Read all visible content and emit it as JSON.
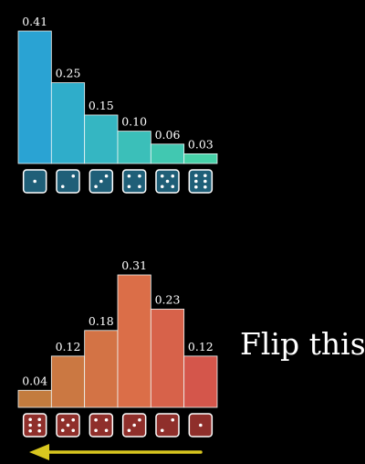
{
  "caption": "Flip this",
  "arrow_color": "#d8c61f",
  "chart_data": [
    {
      "type": "bar",
      "categories": [
        1,
        2,
        3,
        4,
        5,
        6
      ],
      "values": [
        0.41,
        0.25,
        0.15,
        0.1,
        0.06,
        0.03
      ],
      "labels": [
        "0.41",
        "0.25",
        "0.15",
        "0.10",
        "0.06",
        "0.03"
      ],
      "category_display": "die faces",
      "colors": [
        "#2aa3d3",
        "#2fadca",
        "#35b6c2",
        "#3bbfb9",
        "#41c8b1",
        "#47d1a8"
      ],
      "face_color": "#1f5f78",
      "ylim": [
        0,
        0.41
      ]
    },
    {
      "type": "bar",
      "categories": [
        6,
        5,
        4,
        3,
        2,
        1
      ],
      "values": [
        0.04,
        0.12,
        0.18,
        0.31,
        0.23,
        0.12
      ],
      "labels": [
        "0.04",
        "0.12",
        "0.18",
        "0.31",
        "0.23",
        "0.12"
      ],
      "category_display": "die faces",
      "colors": [
        "#c37c3e",
        "#cb7842",
        "#d37345",
        "#db6e48",
        "#d7624a",
        "#d4564b"
      ],
      "face_color": "#8f2f2b",
      "ylim": [
        0,
        0.31
      ]
    }
  ]
}
